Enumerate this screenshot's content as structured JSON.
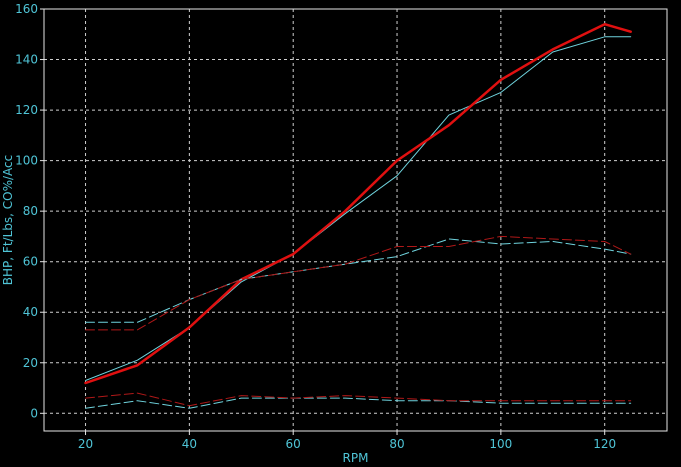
{
  "chart_data": {
    "type": "line",
    "title": "",
    "xlabel": "RPM",
    "ylabel": "BHP, Ft/Lbs, CO%/Acc",
    "xlim": [
      12,
      132
    ],
    "ylim": [
      -7,
      160
    ],
    "x_ticks": [
      20,
      40,
      60,
      80,
      100,
      120
    ],
    "y_ticks": [
      0,
      20,
      40,
      60,
      80,
      100,
      120,
      140,
      160
    ],
    "grid": true,
    "colors": {
      "background": "#000000",
      "plot_border": "#e6e6e6",
      "grid": "#cfcfcf",
      "text": "#4fc4d6",
      "cyan": "#6fd3dd",
      "red": "#e01010",
      "dark_red": "#b01818"
    },
    "series": [
      {
        "color": "cyan",
        "style": "solid",
        "width": 1,
        "x": [
          20,
          30,
          40,
          50,
          60,
          70,
          80,
          90,
          100,
          110,
          120,
          125
        ],
        "y": [
          13,
          21,
          34,
          52,
          63,
          79,
          94,
          118,
          127,
          143,
          149,
          149
        ]
      },
      {
        "color": "red",
        "style": "solid",
        "width": 2.5,
        "x": [
          20,
          30,
          40,
          50,
          60,
          70,
          80,
          90,
          100,
          110,
          120,
          125
        ],
        "y": [
          12,
          19,
          34,
          53,
          63,
          80,
          100,
          114,
          132,
          144,
          154,
          151
        ]
      },
      {
        "color": "cyan",
        "style": "dashed",
        "width": 1,
        "x": [
          20,
          30,
          40,
          50,
          60,
          70,
          80,
          90,
          100,
          110,
          120,
          125
        ],
        "y": [
          36,
          36,
          45,
          53,
          56,
          59,
          62,
          69,
          67,
          68,
          65,
          63
        ]
      },
      {
        "color": "dark_red",
        "style": "dashed",
        "width": 1,
        "x": [
          20,
          30,
          40,
          50,
          60,
          70,
          80,
          90,
          100,
          110,
          120,
          125
        ],
        "y": [
          33,
          33,
          45,
          53,
          56,
          59,
          66,
          66,
          70,
          69,
          68,
          63
        ]
      },
      {
        "color": "cyan",
        "style": "dashed",
        "width": 1,
        "x": [
          20,
          30,
          40,
          50,
          60,
          70,
          80,
          90,
          100,
          110,
          120,
          125
        ],
        "y": [
          2,
          5,
          2,
          6,
          6,
          6,
          5,
          5,
          4,
          4,
          4,
          4
        ]
      },
      {
        "color": "dark_red",
        "style": "dashed",
        "width": 1,
        "x": [
          20,
          30,
          40,
          50,
          60,
          70,
          80,
          90,
          100,
          110,
          120,
          125
        ],
        "y": [
          6,
          8,
          3,
          7,
          6,
          7,
          6,
          5,
          5,
          5,
          5,
          5
        ]
      }
    ]
  }
}
